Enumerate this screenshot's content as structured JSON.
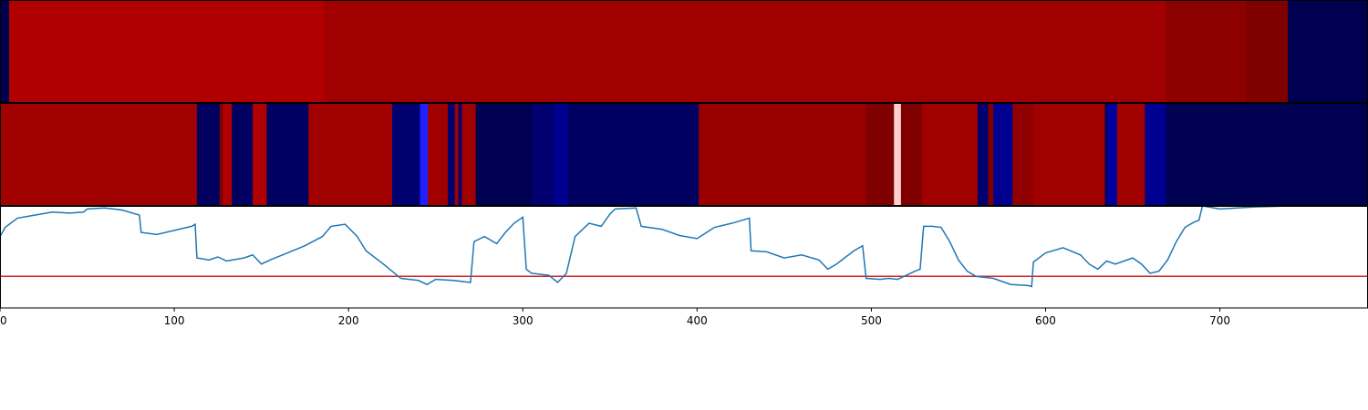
{
  "chart_data": [
    {
      "type": "heatmap",
      "xlim": [
        0,
        785
      ],
      "edges": [
        0,
        5.2,
        186,
        669,
        715,
        739,
        785
      ],
      "colors": [
        "#000050",
        "#b00000",
        "#a00000",
        "#8c0000",
        "#800000",
        "#000050"
      ]
    },
    {
      "type": "heatmap",
      "xlim": [
        0,
        785
      ],
      "edges": [
        0,
        113,
        126,
        128,
        133,
        145,
        153,
        177,
        225,
        241,
        245.5,
        257,
        261,
        263,
        265,
        273,
        305,
        318,
        326,
        401,
        497,
        513,
        517,
        529,
        561,
        567,
        570,
        581,
        593,
        634,
        636,
        641,
        657,
        669,
        785
      ],
      "colors": [
        "#a00000",
        "#000060",
        "#800000",
        "#b00000",
        "#000060",
        "#b00000",
        "#000060",
        "#a00000",
        "#000070",
        "#2020ff",
        "#a00000",
        "#000070",
        "#a00000",
        "#000070",
        "#a00000",
        "#000050",
        "#000070",
        "#000090",
        "#000060",
        "#9a0000",
        "#800000",
        "#ffd0d0",
        "#800000",
        "#a00000",
        "#000070",
        "#800000",
        "#000090",
        "#900000",
        "#a00000",
        "#000070",
        "#0000a0",
        "#a00000",
        "#000090",
        "#000050"
      ]
    },
    {
      "type": "line",
      "xlim": [
        0,
        785
      ],
      "ylim": [
        0,
        1
      ],
      "xticks": [
        0,
        100,
        200,
        300,
        400,
        500,
        600,
        700
      ],
      "threshold": 0.31,
      "threshold_color": "#d62728",
      "series": [
        {
          "color": "#1f77b4",
          "x": [
            0,
            3,
            10,
            20,
            30,
            40,
            48,
            50,
            60,
            70,
            80,
            81,
            90,
            100,
            110,
            112,
            113,
            120,
            125,
            130,
            140,
            145,
            150,
            155,
            165,
            175,
            185,
            190,
            198,
            205,
            210,
            220,
            225,
            230,
            240,
            245,
            250,
            260,
            270,
            272,
            278,
            285,
            290,
            295,
            300,
            302,
            305,
            315,
            320,
            325,
            330,
            338,
            345,
            350,
            353,
            365,
            368,
            380,
            390,
            400,
            410,
            420,
            430,
            431,
            440,
            450,
            460,
            470,
            475,
            480,
            490,
            495,
            497,
            505,
            510,
            515,
            520,
            525,
            528,
            530,
            535,
            540,
            545,
            550,
            555,
            560,
            570,
            580,
            590,
            592,
            593,
            600,
            610,
            620,
            625,
            630,
            635,
            640,
            645,
            650,
            655,
            660,
            665,
            670,
            675,
            680,
            685,
            688,
            690,
            700,
            710,
            720,
            740
          ],
          "values": [
            0.7,
            0.79,
            0.88,
            0.91,
            0.94,
            0.93,
            0.94,
            0.97,
            0.98,
            0.96,
            0.91,
            0.74,
            0.72,
            0.76,
            0.8,
            0.82,
            0.49,
            0.47,
            0.5,
            0.46,
            0.49,
            0.52,
            0.43,
            0.47,
            0.54,
            0.61,
            0.7,
            0.8,
            0.82,
            0.7,
            0.56,
            0.43,
            0.36,
            0.29,
            0.27,
            0.23,
            0.28,
            0.27,
            0.25,
            0.65,
            0.7,
            0.63,
            0.74,
            0.83,
            0.89,
            0.38,
            0.34,
            0.32,
            0.25,
            0.34,
            0.7,
            0.83,
            0.8,
            0.92,
            0.97,
            0.98,
            0.8,
            0.77,
            0.71,
            0.68,
            0.79,
            0.83,
            0.88,
            0.56,
            0.55,
            0.49,
            0.52,
            0.47,
            0.38,
            0.43,
            0.56,
            0.61,
            0.29,
            0.28,
            0.29,
            0.28,
            0.32,
            0.36,
            0.38,
            0.8,
            0.8,
            0.79,
            0.65,
            0.47,
            0.36,
            0.31,
            0.29,
            0.23,
            0.22,
            0.21,
            0.45,
            0.54,
            0.59,
            0.52,
            0.43,
            0.38,
            0.46,
            0.43,
            0.46,
            0.49,
            0.43,
            0.34,
            0.36,
            0.47,
            0.65,
            0.79,
            0.84,
            0.86,
            1.0,
            0.97,
            0.98,
            0.99,
            1.0
          ]
        }
      ]
    }
  ]
}
